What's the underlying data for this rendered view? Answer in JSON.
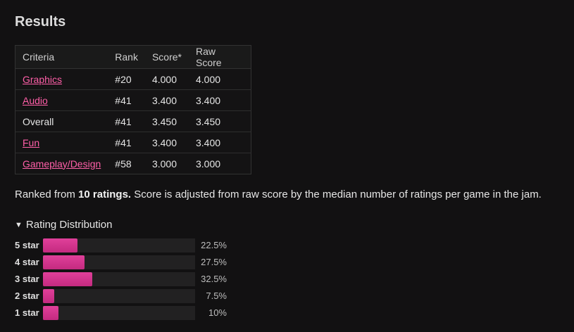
{
  "heading": "Results",
  "table": {
    "headers": [
      "Criteria",
      "Rank",
      "Score*",
      "Raw Score"
    ],
    "rows": [
      {
        "criteria": "Graphics",
        "link": true,
        "rank": "#20",
        "score": "4.000",
        "raw": "4.000"
      },
      {
        "criteria": "Audio",
        "link": true,
        "rank": "#41",
        "score": "3.400",
        "raw": "3.400"
      },
      {
        "criteria": "Overall",
        "link": false,
        "rank": "#41",
        "score": "3.450",
        "raw": "3.450"
      },
      {
        "criteria": "Fun",
        "link": true,
        "rank": "#41",
        "score": "3.400",
        "raw": "3.400"
      },
      {
        "criteria": "Gameplay/Design",
        "link": true,
        "rank": "#58",
        "score": "3.000",
        "raw": "3.000"
      }
    ]
  },
  "summary": {
    "prefix": "Ranked from ",
    "bold": "10 ratings.",
    "suffix": " Score is adjusted from raw score by the median number of ratings per game in the jam."
  },
  "distribution": {
    "toggle_icon": "triangle-down-icon",
    "title": "Rating Distribution",
    "rows": [
      {
        "label": "5 star",
        "percent": 22.5,
        "percent_text": "22.5%"
      },
      {
        "label": "4 star",
        "percent": 27.5,
        "percent_text": "27.5%"
      },
      {
        "label": "3 star",
        "percent": 32.5,
        "percent_text": "32.5%"
      },
      {
        "label": "2 star",
        "percent": 7.5,
        "percent_text": "7.5%"
      },
      {
        "label": "1 star",
        "percent": 10,
        "percent_text": "10%"
      }
    ]
  },
  "colors": {
    "background": "#121112",
    "link": "#ff5fa8",
    "bar": "#d7368f"
  }
}
